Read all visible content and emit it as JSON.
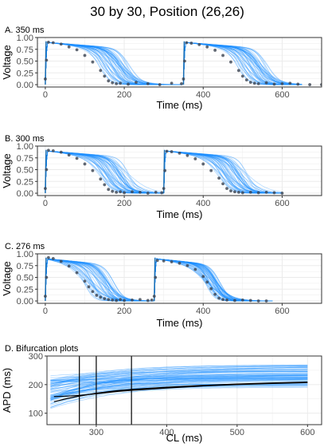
{
  "figure_title": "30 by 30, Position (26,26)",
  "colors": {
    "ribbon": "#1e90ff",
    "points": "#3a4250",
    "black_line": "#000000",
    "panel_border": "#333333",
    "grid": "#ebebeb"
  },
  "chart_data": [
    {
      "type": "line",
      "title": "A. 350 ms",
      "xlabel": "Time (ms)",
      "ylabel": "Voltage",
      "xlim": [
        -20,
        700
      ],
      "ylim": [
        -0.05,
        1.0
      ],
      "xticks": [
        0,
        200,
        400,
        600
      ],
      "yticks": [
        0.0,
        0.25,
        0.5,
        0.75,
        1.0
      ],
      "ytick_labels": [
        "0.00",
        "0.25",
        "0.50",
        "0.75",
        "1.00"
      ],
      "grid": true,
      "beats": [
        0,
        350
      ],
      "series": [
        {
          "kind": "scatter",
          "x": [
            0,
            3,
            8,
            20,
            40,
            60,
            80,
            100,
            120,
            140,
            150,
            160,
            170,
            180,
            190,
            210,
            230,
            260,
            290,
            320,
            345,
            350,
            353,
            358,
            370,
            390,
            410,
            430,
            450,
            470,
            490,
            500,
            510,
            520,
            530,
            540,
            560,
            580,
            600,
            620,
            640,
            670,
            700
          ],
          "y": [
            0.12,
            0.52,
            0.9,
            0.89,
            0.86,
            0.8,
            0.74,
            0.62,
            0.48,
            0.3,
            0.18,
            0.08,
            0.04,
            0.02,
            0.03,
            0.01,
            0.05,
            0.02,
            0.0,
            0.03,
            0.02,
            0.12,
            0.5,
            0.89,
            0.88,
            0.85,
            0.8,
            0.73,
            0.62,
            0.48,
            0.3,
            0.18,
            0.1,
            0.05,
            0.03,
            0.02,
            0.04,
            0.01,
            0.02,
            0.03,
            0.01,
            0.0,
            0.0
          ]
        }
      ]
    },
    {
      "type": "line",
      "title": "B. 300 ms",
      "xlabel": "Time (ms)",
      "ylabel": "Voltage",
      "xlim": [
        -20,
        700
      ],
      "ylim": [
        -0.05,
        1.0
      ],
      "xticks": [
        0,
        200,
        400,
        600
      ],
      "yticks": [
        0.0,
        0.25,
        0.5,
        0.75,
        1.0
      ],
      "ytick_labels": [
        "0.00",
        "0.25",
        "0.50",
        "0.75",
        "1.00"
      ],
      "grid": true,
      "beats": [
        0,
        300
      ],
      "series": [
        {
          "kind": "scatter",
          "x": [
            0,
            3,
            8,
            20,
            40,
            60,
            80,
            100,
            120,
            140,
            150,
            160,
            170,
            180,
            190,
            200,
            220,
            240,
            260,
            280,
            295,
            300,
            303,
            308,
            320,
            340,
            360,
            380,
            400,
            420,
            440,
            450,
            460,
            470,
            480,
            490,
            500,
            520,
            540,
            560,
            580,
            600
          ],
          "y": [
            0.1,
            0.5,
            0.91,
            0.9,
            0.87,
            0.81,
            0.74,
            0.62,
            0.48,
            0.3,
            0.18,
            0.08,
            0.04,
            0.02,
            0.03,
            0.01,
            0.03,
            0.02,
            0.0,
            0.02,
            0.01,
            0.1,
            0.48,
            0.89,
            0.88,
            0.85,
            0.8,
            0.73,
            0.62,
            0.48,
            0.32,
            0.2,
            0.1,
            0.05,
            0.03,
            0.02,
            0.01,
            0.02,
            0.01,
            0.02,
            0.01,
            0.0
          ]
        }
      ]
    },
    {
      "type": "line",
      "title": "C. 276 ms",
      "xlabel": "Time (ms)",
      "ylabel": "Voltage",
      "xlim": [
        -20,
        700
      ],
      "ylim": [
        -0.05,
        1.0
      ],
      "xticks": [
        0,
        200,
        400,
        600
      ],
      "yticks": [
        0.0,
        0.25,
        0.5,
        0.75,
        1.0
      ],
      "ytick_labels": [
        "0.00",
        "0.25",
        "0.50",
        "0.75",
        "1.00"
      ],
      "grid": true,
      "beats": [
        0,
        276
      ],
      "series": [
        {
          "kind": "scatter",
          "x": [
            0,
            3,
            8,
            20,
            40,
            60,
            80,
            100,
            110,
            120,
            130,
            140,
            150,
            160,
            170,
            180,
            190,
            200,
            220,
            240,
            260,
            270,
            276,
            279,
            284,
            300,
            320,
            340,
            360,
            380,
            400,
            410,
            420,
            430,
            440,
            450,
            460,
            480,
            500,
            520,
            540,
            560
          ],
          "y": [
            0.1,
            0.5,
            0.92,
            0.9,
            0.84,
            0.74,
            0.6,
            0.42,
            0.3,
            0.2,
            0.12,
            0.08,
            0.05,
            0.03,
            0.02,
            0.01,
            0.03,
            0.01,
            0.02,
            0.03,
            0.01,
            0.02,
            0.1,
            0.5,
            0.86,
            0.85,
            0.83,
            0.8,
            0.75,
            0.67,
            0.52,
            0.4,
            0.26,
            0.14,
            0.06,
            0.03,
            0.02,
            0.01,
            0.02,
            0.01,
            0.0,
            0.0
          ]
        }
      ]
    },
    {
      "type": "line",
      "title": "D. Bifurcation plots",
      "xlabel": "CL (ms)",
      "ylabel": "APD (ms)",
      "xlim": [
        230,
        620
      ],
      "ylim": [
        60,
        300
      ],
      "xticks": [
        300,
        400,
        500,
        600
      ],
      "yticks": [
        100,
        200,
        300
      ],
      "grid": true,
      "vlines": [
        276,
        300,
        350
      ],
      "series": [
        {
          "kind": "line",
          "x": [
            240,
            260,
            276,
            300,
            330,
            350,
            400,
            450,
            500,
            550,
            600
          ],
          "y": [
            158,
            160,
            162,
            168,
            176,
            180,
            188,
            195,
            200,
            204,
            207
          ]
        },
        {
          "kind": "line",
          "x": [
            240,
            260,
            276,
            300,
            330,
            350,
            400,
            450,
            500,
            550,
            600
          ],
          "y": [
            140,
            152,
            160,
            170,
            179,
            183,
            191,
            197,
            202,
            206,
            209
          ]
        }
      ]
    }
  ]
}
